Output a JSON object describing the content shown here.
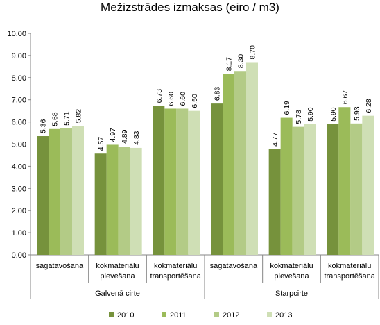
{
  "chart_data": {
    "type": "bar",
    "title": "Mežizstrādes izmaksas (eiro / m3)",
    "ylim": [
      0,
      10
    ],
    "ytick_step": 1,
    "ytick_labels": [
      "0.00",
      "1.00",
      "2.00",
      "3.00",
      "4.00",
      "5.00",
      "6.00",
      "7.00",
      "8.00",
      "9.00",
      "10.00"
    ],
    "grid": false,
    "legend_position": "bottom",
    "categories": [
      {
        "lines": [
          "sagatavošana"
        ],
        "group": "Galvenā cirte"
      },
      {
        "lines": [
          "kokmateriālu",
          "pievešana"
        ],
        "group": "Galvenā cirte"
      },
      {
        "lines": [
          "kokmateriālu",
          "transportēšana"
        ],
        "group": "Galvenā cirte"
      },
      {
        "lines": [
          "sagatavošana"
        ],
        "group": "Starpcirte"
      },
      {
        "lines": [
          "kokmateriālu",
          "pievešana"
        ],
        "group": "Starpcirte"
      },
      {
        "lines": [
          "kokmateriālu",
          "transportēšana"
        ],
        "group": "Starpcirte"
      }
    ],
    "groups": [
      "Galvenā cirte",
      "Starpcirte"
    ],
    "series": [
      {
        "name": "2010",
        "color": "#76923c",
        "values": [
          5.36,
          4.57,
          6.73,
          6.83,
          4.77,
          5.9
        ],
        "labels": [
          "5.36",
          "4.57",
          "6.73",
          "6.83",
          "4.77",
          "5.90"
        ]
      },
      {
        "name": "2011",
        "color": "#9bbb59",
        "values": [
          5.68,
          4.97,
          6.6,
          8.17,
          6.19,
          6.67
        ],
        "labels": [
          "5.68",
          "4.97",
          "6.60",
          "8.17",
          "6.19",
          "6.67"
        ]
      },
      {
        "name": "2012",
        "color": "#b3cb86",
        "values": [
          5.71,
          4.89,
          6.6,
          8.3,
          5.78,
          5.93
        ],
        "labels": [
          "5.71",
          "4.89",
          "6.60",
          "8.30",
          "5.78",
          "5.93"
        ]
      },
      {
        "name": "2013",
        "color": "#cfdfb5",
        "values": [
          5.82,
          4.83,
          6.5,
          8.7,
          5.9,
          6.28
        ],
        "labels": [
          "5.82",
          "4.83",
          "6.50",
          "8.70",
          "5.90",
          "6.28"
        ]
      }
    ]
  }
}
